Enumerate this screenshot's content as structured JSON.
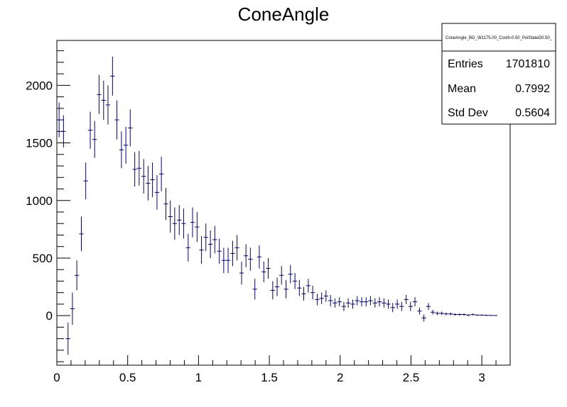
{
  "chart_data": {
    "type": "scatter",
    "title": "ConeAngle",
    "xlabel": "",
    "ylabel": "",
    "xlim": [
      0,
      3.2
    ],
    "ylim": [
      -430,
      2390
    ],
    "x_ticks": [
      "0",
      "0.5",
      "1",
      "1.5",
      "2",
      "2.5",
      "3"
    ],
    "y_ticks": [
      "0",
      "500",
      "1000",
      "1500",
      "2000"
    ],
    "x_tick_values": [
      0,
      0.5,
      1,
      1.5,
      2,
      2.5,
      3
    ],
    "y_tick_values": [
      0,
      500,
      1000,
      1500,
      2000
    ],
    "grid": false,
    "bin_width": 0.0314,
    "series": [
      {
        "marker_color": "#000080",
        "points": [
          [
            0.016,
            1700,
            150
          ],
          [
            0.047,
            1600,
            140
          ],
          [
            0.079,
            -200,
            140
          ],
          [
            0.11,
            60,
            140
          ],
          [
            0.141,
            350,
            130
          ],
          [
            0.173,
            710,
            150
          ],
          [
            0.204,
            1170,
            160
          ],
          [
            0.236,
            1610,
            160
          ],
          [
            0.267,
            1530,
            160
          ],
          [
            0.298,
            1920,
            170
          ],
          [
            0.33,
            1870,
            170
          ],
          [
            0.361,
            1830,
            170
          ],
          [
            0.393,
            2080,
            170
          ],
          [
            0.424,
            1700,
            170
          ],
          [
            0.456,
            1440,
            160
          ],
          [
            0.487,
            1480,
            160
          ],
          [
            0.518,
            1630,
            160
          ],
          [
            0.55,
            1270,
            150
          ],
          [
            0.581,
            1280,
            150
          ],
          [
            0.613,
            1210,
            150
          ],
          [
            0.644,
            1150,
            150
          ],
          [
            0.675,
            1180,
            150
          ],
          [
            0.707,
            1070,
            150
          ],
          [
            0.738,
            1230,
            150
          ],
          [
            0.77,
            970,
            140
          ],
          [
            0.801,
            860,
            140
          ],
          [
            0.832,
            800,
            140
          ],
          [
            0.864,
            830,
            130
          ],
          [
            0.895,
            800,
            130
          ],
          [
            0.927,
            590,
            120
          ],
          [
            0.958,
            810,
            130
          ],
          [
            0.99,
            770,
            130
          ],
          [
            1.021,
            570,
            120
          ],
          [
            1.052,
            680,
            120
          ],
          [
            1.084,
            620,
            120
          ],
          [
            1.115,
            660,
            120
          ],
          [
            1.147,
            560,
            110
          ],
          [
            1.178,
            480,
            110
          ],
          [
            1.209,
            480,
            110
          ],
          [
            1.241,
            540,
            110
          ],
          [
            1.272,
            590,
            110
          ],
          [
            1.304,
            370,
            100
          ],
          [
            1.335,
            520,
            100
          ],
          [
            1.366,
            490,
            100
          ],
          [
            1.398,
            230,
            90
          ],
          [
            1.429,
            510,
            100
          ],
          [
            1.461,
            380,
            90
          ],
          [
            1.492,
            410,
            90
          ],
          [
            1.524,
            220,
            80
          ],
          [
            1.555,
            250,
            80
          ],
          [
            1.586,
            350,
            80
          ],
          [
            1.618,
            230,
            80
          ],
          [
            1.649,
            360,
            80
          ],
          [
            1.681,
            300,
            70
          ],
          [
            1.712,
            240,
            70
          ],
          [
            1.743,
            190,
            60
          ],
          [
            1.775,
            260,
            60
          ],
          [
            1.806,
            200,
            60
          ],
          [
            1.838,
            140,
            50
          ],
          [
            1.869,
            150,
            50
          ],
          [
            1.9,
            170,
            50
          ],
          [
            1.932,
            130,
            50
          ],
          [
            1.963,
            110,
            40
          ],
          [
            1.995,
            120,
            40
          ],
          [
            2.026,
            80,
            40
          ],
          [
            2.057,
            110,
            40
          ],
          [
            2.089,
            100,
            40
          ],
          [
            2.12,
            130,
            40
          ],
          [
            2.152,
            120,
            40
          ],
          [
            2.183,
            120,
            40
          ],
          [
            2.214,
            130,
            40
          ],
          [
            2.246,
            110,
            40
          ],
          [
            2.277,
            120,
            40
          ],
          [
            2.309,
            110,
            40
          ],
          [
            2.34,
            100,
            40
          ],
          [
            2.371,
            70,
            40
          ],
          [
            2.403,
            100,
            40
          ],
          [
            2.434,
            80,
            40
          ],
          [
            2.466,
            140,
            40
          ],
          [
            2.497,
            80,
            40
          ],
          [
            2.528,
            120,
            40
          ],
          [
            2.56,
            40,
            30
          ],
          [
            2.591,
            -20,
            30
          ],
          [
            2.623,
            80,
            30
          ],
          [
            2.654,
            30,
            20
          ],
          [
            2.686,
            20,
            15
          ],
          [
            2.717,
            20,
            15
          ],
          [
            2.748,
            15,
            12
          ],
          [
            2.78,
            15,
            12
          ],
          [
            2.811,
            10,
            10
          ],
          [
            2.843,
            10,
            10
          ],
          [
            2.874,
            10,
            10
          ],
          [
            2.905,
            5,
            8
          ],
          [
            2.937,
            10,
            8
          ],
          [
            2.968,
            5,
            6
          ],
          [
            3.0,
            5,
            6
          ],
          [
            3.031,
            3,
            5
          ],
          [
            3.063,
            2,
            4
          ],
          [
            3.094,
            1,
            3
          ]
        ]
      }
    ],
    "stats_box": {
      "name": "ConeAngle_BG_W1175.00_Costh-0.50_PolStateD0.50_",
      "rows": [
        {
          "label": "Entries",
          "value": "1701810"
        },
        {
          "label": "Mean",
          "value": "0.7992"
        },
        {
          "label": "Std Dev",
          "value": "0.5604"
        }
      ]
    }
  }
}
